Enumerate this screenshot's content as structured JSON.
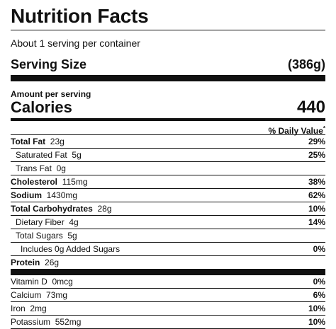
{
  "title": "Nutrition Facts",
  "servings_per_container": "About 1 serving per container",
  "serving_size": {
    "label": "Serving Size",
    "value": "(386g)"
  },
  "amount_per_serving": "Amount per serving",
  "calories": {
    "label": "Calories",
    "value": "440"
  },
  "daily_value_header": "% Daily Value",
  "daily_value_mark": "*",
  "nutrients": [
    {
      "name": "Total Fat",
      "amount": "23g",
      "percent": "29%"
    },
    {
      "name": "Saturated Fat",
      "amount": "5g",
      "percent": "25%"
    },
    {
      "name": "Trans Fat",
      "amount": "0g",
      "percent": ""
    },
    {
      "name": "Cholesterol",
      "amount": "115mg",
      "percent": "38%"
    },
    {
      "name": "Sodium",
      "amount": "1430mg",
      "percent": "62%"
    },
    {
      "name": "Total Carbohydrates",
      "amount": "28g",
      "percent": "10%"
    },
    {
      "name": "Dietary Fiber",
      "amount": "4g",
      "percent": "14%"
    },
    {
      "name": "Total Sugars",
      "amount": "5g",
      "percent": ""
    },
    {
      "name": "Includes 0g Added Sugars",
      "amount": "",
      "percent": "0%"
    },
    {
      "name": "Protein",
      "amount": "26g",
      "percent": ""
    }
  ],
  "vitamins": [
    {
      "name": "Vitamin D",
      "amount": "0mcg",
      "percent": "0%"
    },
    {
      "name": "Calcium",
      "amount": "73mg",
      "percent": "6%"
    },
    {
      "name": "Iron",
      "amount": "2mg",
      "percent": "10%"
    },
    {
      "name": "Potassium",
      "amount": "552mg",
      "percent": "10%"
    }
  ]
}
